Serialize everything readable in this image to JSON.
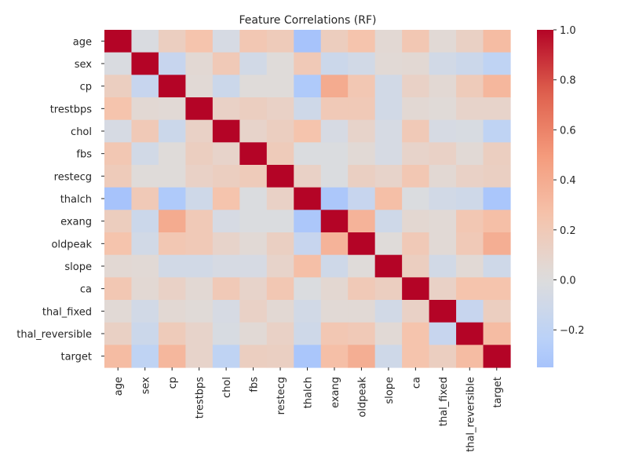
{
  "chart_data": {
    "type": "heatmap",
    "title": "Feature Correlations (RF)",
    "xlabel": "",
    "ylabel": "",
    "labels": [
      "age",
      "sex",
      "cp",
      "trestbps",
      "chol",
      "fbs",
      "restecg",
      "thalch",
      "exang",
      "oldpeak",
      "slope",
      "ca",
      "thal_fixed",
      "thal_reversible",
      "target"
    ],
    "matrix": [
      [
        1.0,
        -0.03,
        0.15,
        0.25,
        -0.05,
        0.22,
        0.18,
        -0.35,
        0.16,
        0.25,
        0.05,
        0.22,
        0.04,
        0.13,
        0.3
      ],
      [
        -0.03,
        1.0,
        -0.15,
        0.05,
        0.2,
        -0.08,
        0.02,
        0.2,
        -0.12,
        -0.08,
        0.04,
        0.05,
        -0.08,
        -0.12,
        -0.2
      ],
      [
        0.15,
        -0.15,
        1.0,
        0.04,
        -0.12,
        0.02,
        0.02,
        -0.3,
        0.4,
        0.22,
        -0.08,
        0.12,
        0.05,
        0.18,
        0.33
      ],
      [
        0.25,
        0.05,
        0.04,
        1.0,
        0.12,
        0.15,
        0.12,
        -0.1,
        0.2,
        0.2,
        -0.08,
        0.05,
        0.03,
        0.1,
        0.1
      ],
      [
        -0.05,
        0.2,
        -0.12,
        0.12,
        1.0,
        0.1,
        0.15,
        0.25,
        -0.05,
        0.1,
        -0.05,
        0.2,
        -0.05,
        -0.04,
        -0.2
      ],
      [
        0.22,
        -0.08,
        0.02,
        0.15,
        0.1,
        1.0,
        0.18,
        -0.02,
        -0.02,
        0.04,
        -0.05,
        0.1,
        0.12,
        0.04,
        0.15
      ],
      [
        0.18,
        0.02,
        0.02,
        0.12,
        0.15,
        0.18,
        1.0,
        0.12,
        -0.02,
        0.14,
        0.1,
        0.22,
        0.05,
        0.12,
        0.14
      ],
      [
        -0.35,
        0.2,
        -0.3,
        -0.1,
        0.25,
        -0.02,
        0.12,
        1.0,
        -0.32,
        -0.15,
        0.28,
        -0.02,
        -0.08,
        -0.1,
        -0.33
      ],
      [
        0.16,
        -0.12,
        0.4,
        0.2,
        -0.05,
        -0.02,
        -0.02,
        -0.32,
        1.0,
        0.35,
        -0.1,
        0.06,
        0.04,
        0.22,
        0.28
      ],
      [
        0.25,
        -0.08,
        0.22,
        0.2,
        0.1,
        0.04,
        0.14,
        -0.15,
        0.35,
        1.0,
        0.02,
        0.2,
        0.04,
        0.2,
        0.38
      ],
      [
        0.05,
        0.04,
        -0.08,
        -0.08,
        -0.05,
        -0.05,
        0.1,
        0.28,
        -0.1,
        0.02,
        1.0,
        0.15,
        -0.08,
        0.04,
        -0.1
      ],
      [
        0.22,
        0.05,
        0.12,
        0.05,
        0.2,
        0.1,
        0.22,
        -0.02,
        0.06,
        0.2,
        0.15,
        1.0,
        0.12,
        0.25,
        0.25
      ],
      [
        0.04,
        -0.08,
        0.05,
        0.03,
        -0.05,
        0.12,
        0.05,
        -0.08,
        0.04,
        0.04,
        -0.08,
        0.12,
        1.0,
        -0.15,
        0.15
      ],
      [
        0.13,
        -0.12,
        0.18,
        0.1,
        -0.04,
        0.04,
        0.12,
        -0.1,
        0.22,
        0.2,
        0.04,
        0.25,
        -0.15,
        1.0,
        0.3
      ],
      [
        0.3,
        -0.2,
        0.33,
        0.1,
        -0.2,
        0.15,
        0.14,
        -0.33,
        0.28,
        0.38,
        -0.1,
        0.25,
        0.15,
        0.3,
        1.0
      ]
    ],
    "vmin": -0.35,
    "vmax": 1.0,
    "colormap": "coolwarm",
    "colorbar_ticks": [
      -0.2,
      0.0,
      0.2,
      0.4,
      0.6,
      0.8,
      1.0
    ],
    "colorbar_tick_labels": [
      "−0.2",
      "0.0",
      "0.2",
      "0.4",
      "0.6",
      "0.8",
      "1.0"
    ],
    "grid": false,
    "legend": "colorbar-right"
  }
}
